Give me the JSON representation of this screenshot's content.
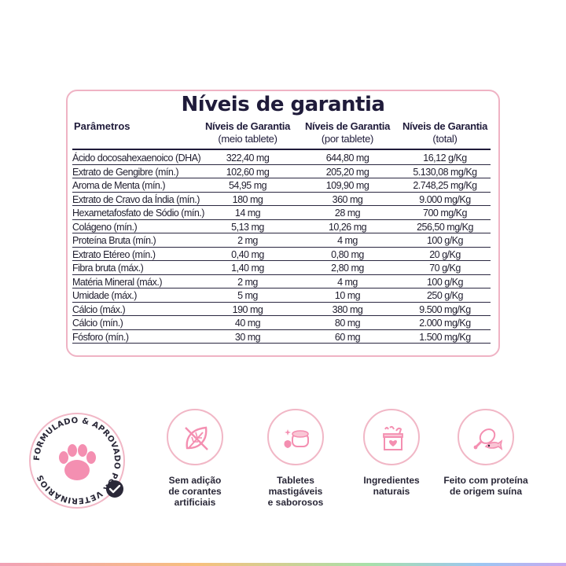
{
  "table": {
    "title": "Níveis de garantia",
    "headers": {
      "params": "Parâmetros",
      "c1_bold": "Níveis de Garantia",
      "c1_sub": "(meio tablete)",
      "c2_bold": "Níveis de Garantia",
      "c2_sub": "(por tablete)",
      "c3_bold": "Níveis de Garantia",
      "c3_sub": "(total)"
    },
    "rows": [
      [
        "Ácido docosahexaenoico (DHA)",
        "322,40 mg",
        "644,80 mg",
        "16,12 g/Kg"
      ],
      [
        "Extrato de Gengibre (mín.)",
        "102,60 mg",
        "205,20 mg",
        "5.130,08 mg/Kg"
      ],
      [
        "Aroma de Menta (mín.)",
        "54,95 mg",
        "109,90 mg",
        "2.748,25 mg/Kg"
      ],
      [
        "Extrato de Cravo da Índia (mín.)",
        "180 mg",
        "360 mg",
        "9.000 mg/Kg"
      ],
      [
        "Hexametafosfato de Sódio (mín.)",
        "14 mg",
        "28 mg",
        "700 mg/Kg"
      ],
      [
        "Colágeno (mín.)",
        "5,13 mg",
        "10,26 mg",
        "256,50 mg/Kg"
      ],
      [
        "Proteína Bruta (mín.)",
        "2 mg",
        "4 mg",
        "100 g/Kg"
      ],
      [
        "Extrato Etéreo (mín.)",
        "0,40 mg",
        "0,80 mg",
        "20 g/Kg"
      ],
      [
        "Fibra bruta (máx.)",
        "1,40 mg",
        "2,80 mg",
        "70 g/Kg"
      ],
      [
        "Matéria Mineral (máx.)",
        "2 mg",
        "4 mg",
        "100 g/Kg"
      ],
      [
        "Umidade (máx.)",
        "5 mg",
        "10 mg",
        "250 g/Kg"
      ],
      [
        "Cálcio (máx.)",
        "190 mg",
        "380 mg",
        "9.500 mg/Kg"
      ],
      [
        "Cálcio (mín.)",
        "40 mg",
        "80 mg",
        "2.000 mg/Kg"
      ],
      [
        "Fósforo (mín.)",
        "30 mg",
        "60 mg",
        "1.500 mg/Kg"
      ]
    ]
  },
  "seal": {
    "text": "FORMULADO & APROVADO POR VETERINÁRIOS",
    "icon": "paw-icon"
  },
  "features": [
    {
      "icon": "leaf-icon",
      "line1": "Sem adição",
      "line2": "de corantes",
      "line3": "artificiais"
    },
    {
      "icon": "tablet-icon",
      "line1": "Tabletes",
      "line2": "mastigáveis",
      "line3": "e saborosos"
    },
    {
      "icon": "ingredients-box-icon",
      "line1": "Ingredientes",
      "line2": "naturais",
      "line3": ""
    },
    {
      "icon": "meat-fish-icon",
      "line1": "Feito com proteína",
      "line2": "de origem suína",
      "line3": ""
    }
  ],
  "colors": {
    "accent_pink": "#f1b7c6",
    "icon_pink": "#f48fb1",
    "text_dark": "#1f1b3a"
  }
}
